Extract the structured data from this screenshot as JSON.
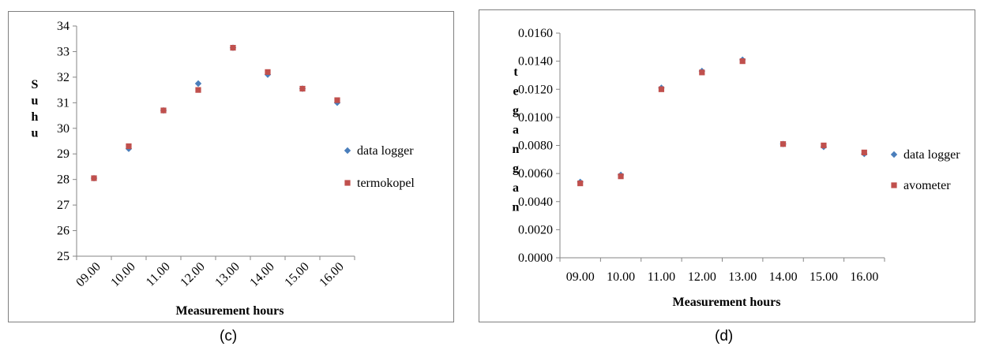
{
  "captions": {
    "c": "(c)",
    "d": "(d)"
  },
  "chart_data": [
    {
      "type": "scatter",
      "panel": "c",
      "categories": [
        "09.00",
        "10.00",
        "11.00",
        "12.00",
        "13.00",
        "14.00",
        "15.00",
        "16.00"
      ],
      "series": [
        {
          "name": "data logger",
          "color": "#4a7ebb",
          "marker": "diamond",
          "values": [
            28.05,
            29.2,
            30.7,
            31.75,
            33.15,
            32.1,
            31.55,
            31.0
          ]
        },
        {
          "name": "termokopel",
          "color": "#c0504d",
          "marker": "square",
          "values": [
            28.05,
            29.3,
            30.7,
            31.5,
            33.15,
            32.2,
            31.55,
            31.1
          ]
        }
      ],
      "xlabel": "Measurement hours",
      "ylabel": "Suhu",
      "ylim": [
        25,
        34
      ],
      "yticks": [
        "25",
        "26",
        "27",
        "28",
        "29",
        "30",
        "31",
        "32",
        "33",
        "34"
      ],
      "x_tick_rotation": "diagonal",
      "grid": false,
      "legend": "right"
    },
    {
      "type": "scatter",
      "panel": "d",
      "categories": [
        "09.00",
        "10.00",
        "11.00",
        "12.00",
        "13.00",
        "14.00",
        "15.00",
        "16.00"
      ],
      "series": [
        {
          "name": "data logger",
          "color": "#4a7ebb",
          "marker": "diamond",
          "values": [
            0.0054,
            0.0059,
            0.0121,
            0.0133,
            0.0141,
            0.0081,
            0.0079,
            0.0074
          ]
        },
        {
          "name": "avometer",
          "color": "#c0504d",
          "marker": "square",
          "values": [
            0.0053,
            0.0058,
            0.012,
            0.0132,
            0.014,
            0.0081,
            0.008,
            0.0075
          ]
        }
      ],
      "xlabel": "Measurement hours",
      "ylabel": "tegangan",
      "ylim": [
        0,
        0.016
      ],
      "yticks": [
        "0.0000",
        "0.0020",
        "0.0040",
        "0.0060",
        "0.0080",
        "0.0100",
        "0.0120",
        "0.0140",
        "0.0160"
      ],
      "grid": false,
      "legend": "right"
    }
  ]
}
